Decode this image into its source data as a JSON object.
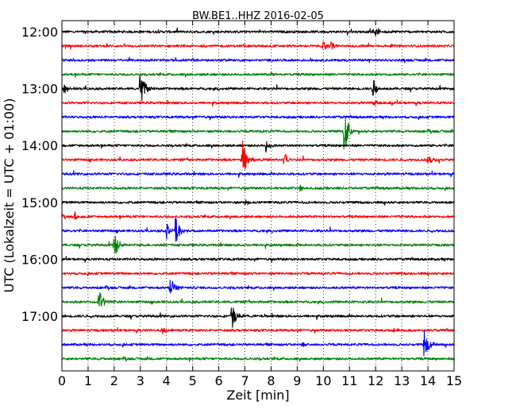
{
  "chart_data": {
    "type": "line",
    "title": "BW.BE1..HHZ 2016-02-05",
    "xlabel": "Zeit  [min]",
    "ylabel": "UTC (Lokalzeit = UTC + 01:00)",
    "xlim": [
      0,
      15
    ],
    "x_ticks": [
      "0",
      "1",
      "2",
      "3",
      "4",
      "5",
      "6",
      "7",
      "8",
      "9",
      "10",
      "11",
      "12",
      "13",
      "14",
      "15"
    ],
    "y_ticks": [
      {
        "label": "12:00",
        "trace": 0
      },
      {
        "label": "13:00",
        "trace": 4
      },
      {
        "label": "14:00",
        "trace": 8
      },
      {
        "label": "15:00",
        "trace": 12
      },
      {
        "label": "16:00",
        "trace": 16
      },
      {
        "label": "17:00",
        "trace": 20
      }
    ],
    "grid": "vertical dotted",
    "colors": [
      "#000000",
      "#ff0000",
      "#0000ff",
      "#008000"
    ],
    "traces": [
      {
        "start": "12:00",
        "color": "#000000",
        "events": [
          {
            "t": 12.0,
            "amp": 0.3
          },
          {
            "t": 11.8,
            "amp": 0.2
          }
        ]
      },
      {
        "start": "12:15",
        "color": "#ff0000",
        "events": [
          {
            "t": 10.0,
            "amp": 0.3
          },
          {
            "t": 10.3,
            "amp": 0.25
          }
        ]
      },
      {
        "start": "12:30",
        "color": "#0000ff",
        "events": []
      },
      {
        "start": "12:45",
        "color": "#008000",
        "events": [
          {
            "t": 8.0,
            "amp": 0.15
          }
        ]
      },
      {
        "start": "13:00",
        "color": "#000000",
        "events": [
          {
            "t": 3.0,
            "amp": 1.3
          },
          {
            "t": 0.1,
            "amp": 0.35
          },
          {
            "t": 11.9,
            "amp": 0.6
          }
        ]
      },
      {
        "start": "13:15",
        "color": "#ff0000",
        "events": [
          {
            "t": 11.9,
            "amp": 0.3
          }
        ]
      },
      {
        "start": "13:30",
        "color": "#0000ff",
        "events": []
      },
      {
        "start": "13:45",
        "color": "#008000",
        "events": [
          {
            "t": 10.8,
            "amp": 1.4
          }
        ]
      },
      {
        "start": "14:00",
        "color": "#000000",
        "events": [
          {
            "t": 7.8,
            "amp": 0.35
          }
        ]
      },
      {
        "start": "14:15",
        "color": "#ff0000",
        "events": [
          {
            "t": 6.9,
            "amp": 1.3
          },
          {
            "t": 8.5,
            "amp": 0.5
          },
          {
            "t": 14.0,
            "amp": 0.4
          }
        ]
      },
      {
        "start": "14:30",
        "color": "#0000ff",
        "events": []
      },
      {
        "start": "14:45",
        "color": "#008000",
        "events": [
          {
            "t": 9.1,
            "amp": 0.2
          }
        ]
      },
      {
        "start": "15:00",
        "color": "#000000",
        "events": [
          {
            "t": 7.0,
            "amp": 0.3
          }
        ]
      },
      {
        "start": "15:15",
        "color": "#ff0000",
        "events": [
          {
            "t": 0.5,
            "amp": 0.25
          }
        ]
      },
      {
        "start": "15:30",
        "color": "#0000ff",
        "events": [
          {
            "t": 4.0,
            "amp": 0.5
          },
          {
            "t": 4.35,
            "amp": 1.0
          }
        ]
      },
      {
        "start": "15:45",
        "color": "#008000",
        "events": [
          {
            "t": 2.0,
            "amp": 0.8
          }
        ]
      },
      {
        "start": "16:00",
        "color": "#000000",
        "events": []
      },
      {
        "start": "16:15",
        "color": "#ff0000",
        "events": []
      },
      {
        "start": "16:30",
        "color": "#0000ff",
        "events": [
          {
            "t": 4.15,
            "amp": 0.8
          }
        ]
      },
      {
        "start": "16:45",
        "color": "#008000",
        "events": [
          {
            "t": 1.4,
            "amp": 0.9
          }
        ]
      },
      {
        "start": "17:00",
        "color": "#000000",
        "events": [
          {
            "t": 6.5,
            "amp": 0.8
          }
        ]
      },
      {
        "start": "17:15",
        "color": "#ff0000",
        "events": [
          {
            "t": 3.85,
            "amp": 0.25
          },
          {
            "t": 12.7,
            "amp": 0.2
          }
        ]
      },
      {
        "start": "17:30",
        "color": "#0000ff",
        "events": [
          {
            "t": 13.85,
            "amp": 1.0
          },
          {
            "t": 9.2,
            "amp": 0.2
          }
        ]
      },
      {
        "start": "17:45",
        "color": "#008000",
        "events": []
      }
    ]
  }
}
